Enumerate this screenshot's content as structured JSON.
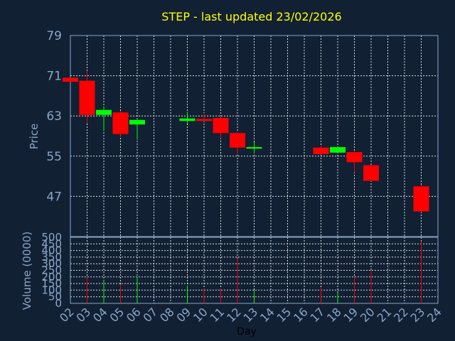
{
  "title": "STEP - last updated 23/02/2026",
  "colors": {
    "background": "#112033",
    "up": "#00ff00",
    "down": "#ff0000",
    "axis_text": "#8aa6c6",
    "title": "#ffff00",
    "grid": "#ffffff"
  },
  "chart_data": [
    {
      "type": "candlestick",
      "ylabel": "Price",
      "ylim": [
        39,
        79
      ],
      "yticks": [
        47,
        55,
        63,
        71,
        79
      ],
      "grid": true,
      "candles": [
        {
          "day": 2,
          "open": 70.6,
          "close": 69.8,
          "high": 70.6,
          "low": 69.8
        },
        {
          "day": 3,
          "open": 70.0,
          "close": 63.2,
          "high": 72.0,
          "low": 61.5
        },
        {
          "day": 4,
          "open": 63.2,
          "close": 64.2,
          "high": 64.8,
          "low": 60.0
        },
        {
          "day": 5,
          "open": 63.7,
          "close": 59.4,
          "high": 64.0,
          "low": 59.0
        },
        {
          "day": 6,
          "open": 61.3,
          "close": 62.2,
          "high": 62.5,
          "low": 58.3
        },
        {
          "day": 9,
          "open": 62.0,
          "close": 62.5,
          "high": 63.8,
          "low": 61.5
        },
        {
          "day": 10,
          "open": 62.4,
          "close": 62.0,
          "high": 63.6,
          "low": 61.9
        },
        {
          "day": 11,
          "open": 62.6,
          "close": 59.6,
          "high": 63.0,
          "low": 58.5
        },
        {
          "day": 12,
          "open": 59.6,
          "close": 56.7,
          "high": 59.8,
          "low": 55.3
        },
        {
          "day": 13,
          "open": 56.5,
          "close": 56.8,
          "high": 57.8,
          "low": 55.5
        },
        {
          "day": 17,
          "open": 56.7,
          "close": 55.4,
          "high": 57.0,
          "low": 55.2
        },
        {
          "day": 18,
          "open": 55.7,
          "close": 56.8,
          "high": 56.9,
          "low": 55.5
        },
        {
          "day": 19,
          "open": 55.8,
          "close": 53.8,
          "high": 56.0,
          "low": 51.7
        },
        {
          "day": 20,
          "open": 53.2,
          "close": 50.1,
          "high": 53.3,
          "low": 50.0
        },
        {
          "day": 23,
          "open": 49.0,
          "close": 44.0,
          "high": 49.3,
          "low": 43.8
        }
      ]
    },
    {
      "type": "bar",
      "ylabel": "Volume (0000)",
      "ylim": [
        0,
        500
      ],
      "yticks": [
        0,
        50,
        100,
        150,
        200,
        250,
        300,
        350,
        400,
        450,
        500
      ],
      "xlabel": "Day",
      "x_tick_labels": [
        "02",
        "03",
        "04",
        "05",
        "06",
        "07",
        "08",
        "09",
        "10",
        "11",
        "12",
        "13",
        "14",
        "15",
        "16",
        "17",
        "18",
        "19",
        "20",
        "21",
        "22",
        "23",
        "24"
      ],
      "grid": true,
      "bars": [
        {
          "day": 3,
          "value": 205,
          "direction": "down"
        },
        {
          "day": 4,
          "value": 175,
          "direction": "up"
        },
        {
          "day": 5,
          "value": 145,
          "direction": "down"
        },
        {
          "day": 6,
          "value": 200,
          "direction": "up"
        },
        {
          "day": 9,
          "value": 135,
          "direction": "up"
        },
        {
          "day": 10,
          "value": 115,
          "direction": "down"
        },
        {
          "day": 11,
          "value": 115,
          "direction": "down"
        },
        {
          "day": 12,
          "value": 340,
          "direction": "down"
        },
        {
          "day": 13,
          "value": 100,
          "direction": "up"
        },
        {
          "day": 17,
          "value": 120,
          "direction": "down"
        },
        {
          "day": 18,
          "value": 80,
          "direction": "up"
        },
        {
          "day": 19,
          "value": 205,
          "direction": "down"
        },
        {
          "day": 20,
          "value": 250,
          "direction": "down"
        },
        {
          "day": 23,
          "value": 470,
          "direction": "down"
        }
      ]
    }
  ]
}
